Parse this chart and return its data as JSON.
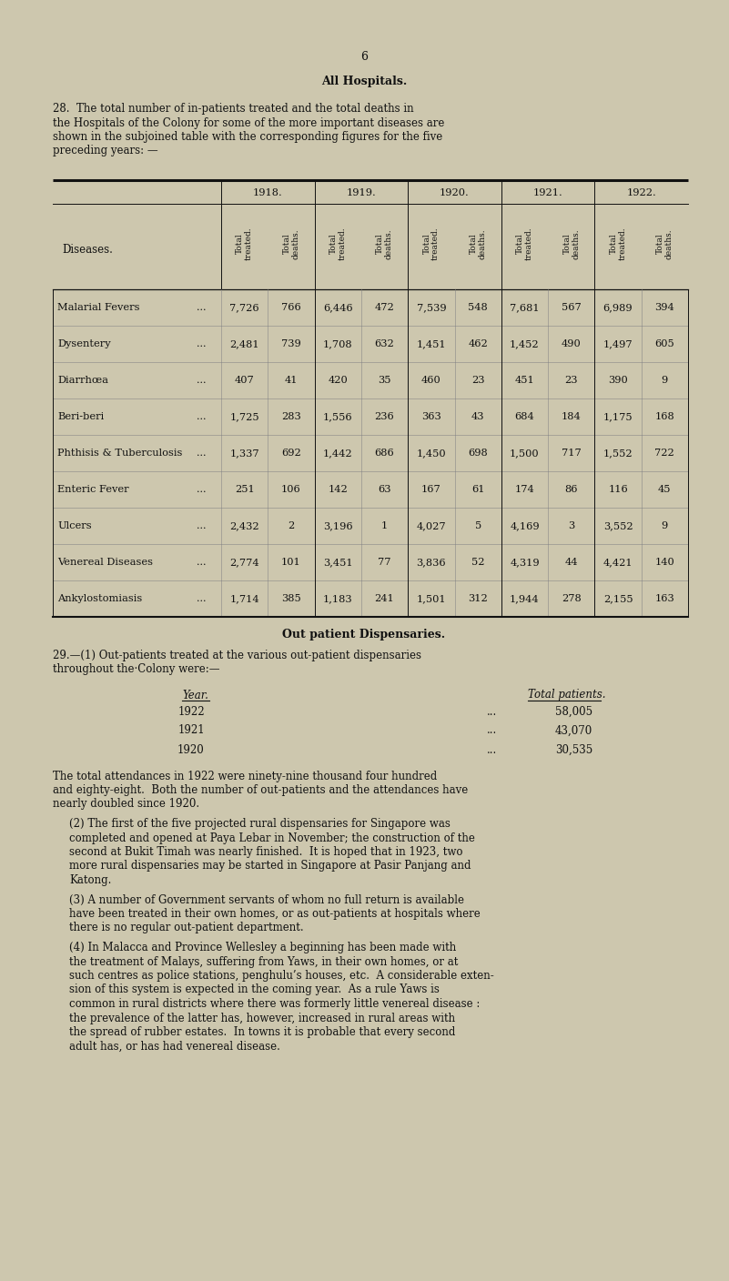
{
  "bg_color": "#cdc7ae",
  "text_color": "#111111",
  "page_number": "6",
  "section_title": "All Hospitals.",
  "para28_line1": "28.  The total number of in-patients treated and the total deaths in",
  "para28_line2": "the Hospitals of the Colony for some of the more important diseases are",
  "para28_line3": "shown in the subjoined table with the corresponding figures for the five",
  "para28_line4": "preceding years: —",
  "table_years": [
    "1918.",
    "1919.",
    "1920.",
    "1921.",
    "1922."
  ],
  "diseases_label": "Diseases.",
  "table_data": [
    [
      "Malarial Fevers",
      "7,726",
      "766",
      "6,446",
      "472",
      "7,539",
      "548",
      "7,681",
      "567",
      "6,989",
      "394"
    ],
    [
      "Dysentery",
      "2,481",
      "739",
      "1,708",
      "632",
      "1,451",
      "462",
      "1,452",
      "490",
      "1,497",
      "605"
    ],
    [
      "Diarrhœa",
      "407",
      "41",
      "420",
      "35",
      "460",
      "23",
      "451",
      "23",
      "390",
      "9"
    ],
    [
      "Beri-beri",
      "1,725",
      "283",
      "1,556",
      "236",
      "363",
      "43",
      "684",
      "184",
      "1,175",
      "168"
    ],
    [
      "Phthisis & Tuberculosis",
      "1,337",
      "692",
      "1,442",
      "686",
      "1,450",
      "698",
      "1,500",
      "717",
      "1,552",
      "722"
    ],
    [
      "Enteric Fever",
      "251",
      "106",
      "142",
      "63",
      "167",
      "61",
      "174",
      "86",
      "116",
      "45"
    ],
    [
      "Ulcers",
      "2,432",
      "2",
      "3,196",
      "1",
      "4,027",
      "5",
      "4,169",
      "3",
      "3,552",
      "9"
    ],
    [
      "Venereal Diseases",
      "2,774",
      "101",
      "3,451",
      "77",
      "3,836",
      "52",
      "4,319",
      "44",
      "4,421",
      "140"
    ],
    [
      "Ankylostomiasis",
      "1,714",
      "385",
      "1,183",
      "241",
      "1,501",
      "312",
      "1,944",
      "278",
      "2,155",
      "163"
    ]
  ],
  "outpatient_section_title": "Out patient Dispensaries.",
  "para29_intro_line1": "29.—(1) Out-patients treated at the various out-patient dispensaries",
  "para29_intro_line2": "throughout the·Colony were:—",
  "outpatient_year_header": "Year.",
  "outpatient_total_header": "Total patients.",
  "outpatient_data": [
    [
      "1922",
      "58,005"
    ],
    [
      "1921",
      "43,070"
    ],
    [
      "1920",
      "30,535"
    ]
  ],
  "para29_text1_lines": [
    "The total attendances in 1922 were ninety-nine thousand four hundred",
    "and eighty-eight.  Both the number of out-patients and the attendances have",
    "nearly doubled since 1920."
  ],
  "para29_2_lines": [
    "(2) The first of the five projected rural dispensaries for Singapore was",
    "completed and opened at Paya Lebar in November; the construction of the",
    "second at Bukit Timah was nearly finished.  It is hoped that in 1923, two",
    "more rural dispensaries may be started in Singapore at Pasir Panjang and",
    "Katong."
  ],
  "para29_3_lines": [
    "(3) A number of Government servants of whom no full return is available",
    "have been treated in their own homes, or as out-patients at hospitals where",
    "there is no regular out-patient department."
  ],
  "para29_4_lines": [
    "(4) In Malacca and Province Wellesley a beginning has been made with",
    "the treatment of Malays, suffering from Yaws, in their own homes, or at",
    "such centres as police stations, penghulu’s houses, etc.  A considerable exten-",
    "sion of this system is expected in the coming year.  As a rule Yaws is",
    "common in rural districts where there was formerly little venereal disease :",
    "the prevalence of the latter has, however, increased in rural areas with",
    "the spread of rubber estates.  In towns it is probable that every second",
    "adult has, or has had venereal disease."
  ]
}
